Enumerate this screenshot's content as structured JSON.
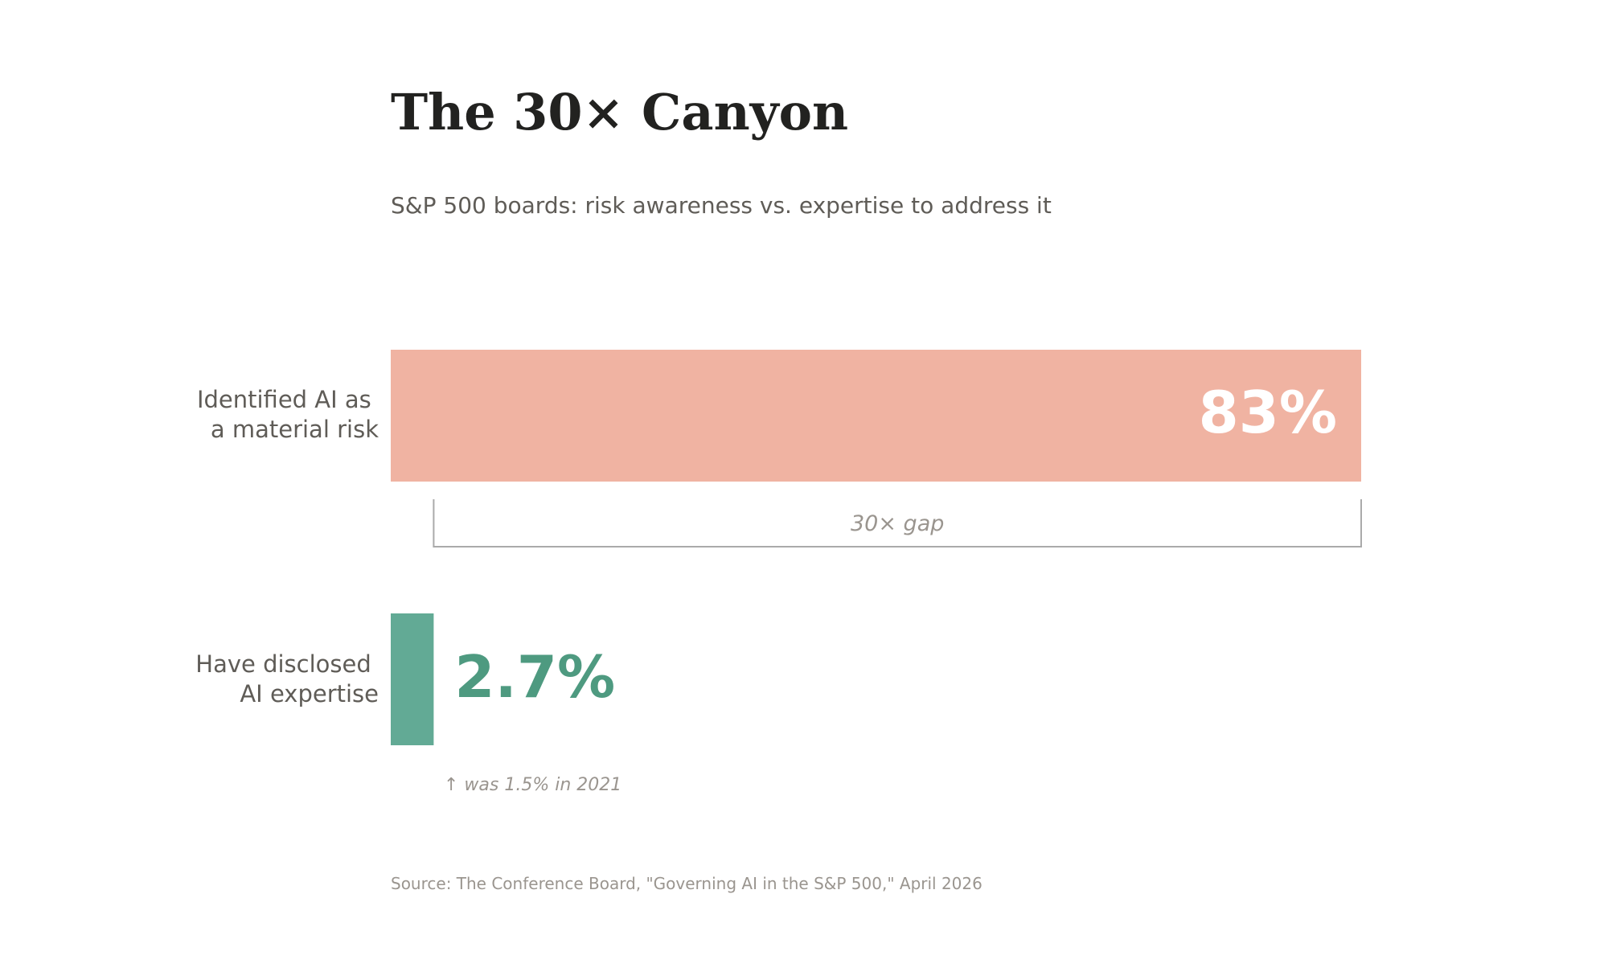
{
  "colors": {
    "risk_bar": "#f0b3a2",
    "expertise_bar": "#62aa95",
    "expertise_text": "#4e9a80",
    "risk_value_text": "#ffffff",
    "bracket": "#aaaaaa"
  },
  "chart_data": {
    "type": "bar",
    "orientation": "horizontal",
    "title": "The 30× Canyon",
    "subtitle": "S&P 500 boards: risk awareness vs. expertise to address it",
    "xlim": [
      0,
      83
    ],
    "grid": false,
    "legend": "none",
    "categories": [
      [
        "Identified AI as",
        "a material risk"
      ],
      [
        "Have disclosed",
        "AI expertise"
      ]
    ],
    "values": [
      83,
      2.7
    ],
    "value_labels": [
      "83%",
      "2.7%"
    ],
    "annotations": {
      "gap_label": "30× gap",
      "history_note": "↑ was 1.5% in 2021"
    },
    "source": "Source: The Conference Board, \"Governing AI in the S&P 500,\" April 2026"
  }
}
